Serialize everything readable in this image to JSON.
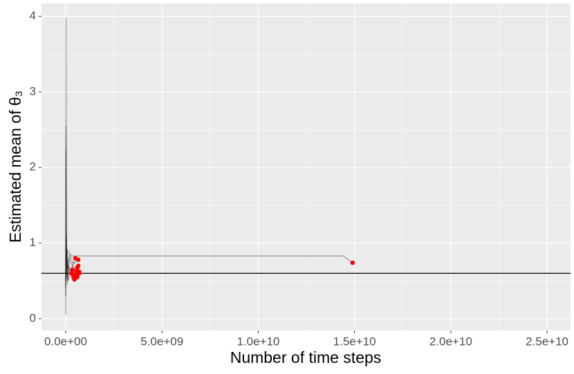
{
  "chart_data": {
    "type": "line",
    "x_label": "Number of time steps",
    "y_label": "Estimated mean of θ₃",
    "xlim": [
      -1257000000,
      26220000000
    ],
    "ylim": [
      -0.156,
      4.17
    ],
    "xticks": [
      {
        "value": 0,
        "label": "0.0e+00"
      },
      {
        "value": 5000000000,
        "label": "5.0e+09"
      },
      {
        "value": 10000000000,
        "label": "1.0e+10"
      },
      {
        "value": 15000000000,
        "label": "1.5e+10"
      },
      {
        "value": 20000000000,
        "label": "2.0e+10"
      },
      {
        "value": 25000000000,
        "label": "2.5e+10"
      }
    ],
    "minor_xticks": [
      2500000000,
      7500000000,
      12500000000,
      17500000000,
      22500000000
    ],
    "yticks": [
      0,
      1,
      2,
      3,
      4
    ],
    "minor_yticks": [
      0.5,
      1.5,
      2.5,
      3.5
    ],
    "grid": true,
    "line_opacity": 0.3,
    "hline": 0.6,
    "hline_color": "#000000",
    "series": [
      {
        "color": "#000000",
        "x": [
          0,
          20000000,
          40000000,
          60000000,
          100000000,
          200000000,
          300000000,
          500000000
        ],
        "values": [
          0.05,
          3.98,
          1.2,
          0.55,
          0.75,
          0.62,
          0.66,
          0.58
        ]
      },
      {
        "color": "#000000",
        "x": [
          0,
          15000000,
          40000000,
          80000000,
          150000000,
          300000000,
          450000000
        ],
        "values": [
          0.3,
          2.55,
          0.9,
          0.5,
          0.7,
          0.6,
          0.55
        ]
      },
      {
        "color": "#000000",
        "x": [
          0,
          10000000,
          30000000,
          70000000,
          150000000,
          350000000,
          600000000
        ],
        "values": [
          0.4,
          2.25,
          1.05,
          0.65,
          0.8,
          0.7,
          0.67
        ]
      },
      {
        "color": "#000000",
        "x": [
          0,
          30000000,
          80000000,
          200000000,
          400000000,
          650000000
        ],
        "values": [
          0.6,
          1.1,
          0.45,
          0.85,
          0.72,
          0.78
        ]
      },
      {
        "color": "#000000",
        "x": [
          0,
          50000000,
          120000000,
          250000000,
          500000000
        ],
        "values": [
          0.7,
          0.95,
          0.5,
          0.62,
          0.8
        ]
      },
      {
        "color": "#000000",
        "x": [
          0,
          100000000,
          300000000,
          14400000000,
          14900000000
        ],
        "values": [
          0.5,
          0.9,
          0.83,
          0.83,
          0.74
        ]
      }
    ],
    "points": {
      "color": "#ff0000",
      "x": [
        500000000,
        650000000,
        300000000,
        400000000,
        450000000,
        500000000,
        550000000,
        600000000,
        650000000,
        700000000,
        350000000,
        400000000,
        600000000,
        700000000,
        14900000000
      ],
      "values": [
        0.8,
        0.78,
        0.6,
        0.55,
        0.52,
        0.58,
        0.63,
        0.67,
        0.7,
        0.62,
        0.65,
        0.58,
        0.55,
        0.6,
        0.74
      ]
    }
  }
}
